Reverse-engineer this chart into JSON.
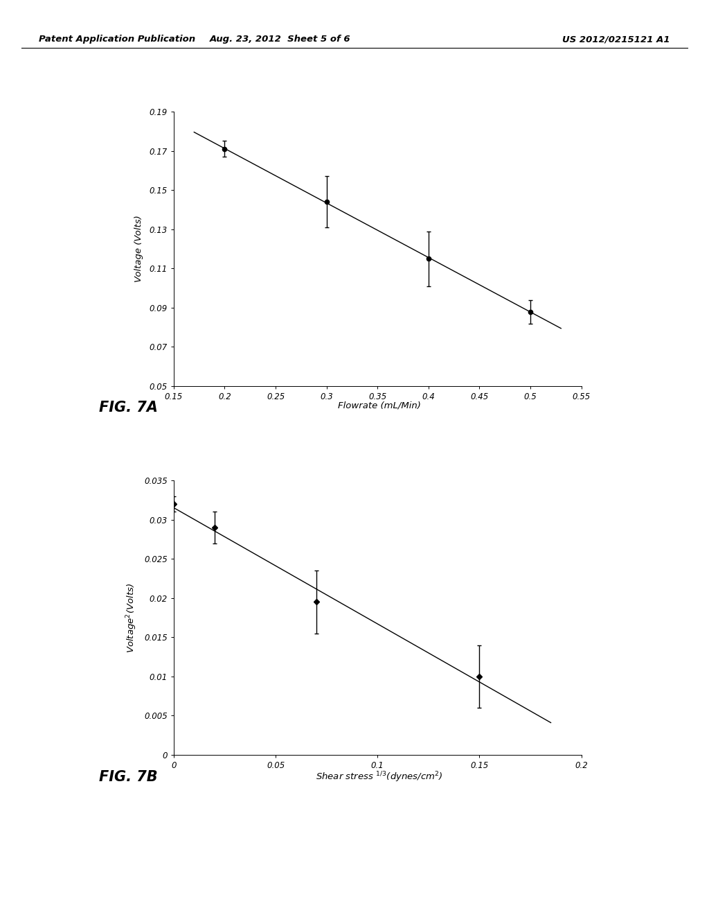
{
  "fig7a": {
    "x": [
      0.2,
      0.3,
      0.4,
      0.5
    ],
    "y": [
      0.171,
      0.144,
      0.115,
      0.088
    ],
    "yerr": [
      0.004,
      0.013,
      0.014,
      0.006
    ],
    "xlim": [
      0.15,
      0.55
    ],
    "ylim": [
      0.05,
      0.19
    ],
    "xticks": [
      0.15,
      0.2,
      0.25,
      0.3,
      0.35,
      0.4,
      0.45,
      0.5,
      0.55
    ],
    "xtick_labels": [
      "0.15",
      "0.2",
      "0.25",
      "0.3",
      "0.35",
      "0.4",
      "0.45",
      "0.5",
      "0.55"
    ],
    "yticks": [
      0.05,
      0.07,
      0.09,
      0.11,
      0.13,
      0.15,
      0.17,
      0.19
    ],
    "ytick_labels": [
      "0.05",
      "0.07",
      "0.09",
      "0.11",
      "0.13",
      "0.15",
      "0.17",
      "0.19"
    ],
    "xlabel": "Flowrate (mL/Min)",
    "ylabel": "Voltage (Volts)",
    "fig_label": "FIG. 7A",
    "line_x": [
      0.17,
      0.53
    ]
  },
  "fig7b": {
    "x": [
      0.0,
      0.02,
      0.07,
      0.15
    ],
    "y": [
      0.032,
      0.029,
      0.0195,
      0.01
    ],
    "yerr": [
      0.001,
      0.002,
      0.004,
      0.004
    ],
    "xlim": [
      0.0,
      0.2
    ],
    "ylim": [
      0.0,
      0.035
    ],
    "xticks": [
      0.0,
      0.05,
      0.1,
      0.15,
      0.2
    ],
    "xtick_labels": [
      "0",
      "0.05",
      "0.1",
      "0.15",
      "0.2"
    ],
    "yticks": [
      0.0,
      0.005,
      0.01,
      0.015,
      0.02,
      0.025,
      0.03,
      0.035
    ],
    "ytick_labels": [
      "0",
      "0.005",
      "0.01",
      "0.015",
      "0.02",
      "0.025",
      "0.03",
      "0.035"
    ],
    "xlabel": "Shear stress $^{1/3}$(dynes/cm$^{2}$)",
    "ylabel": "Voltage$^{2}$(Volts)",
    "fig_label": "FIG. 7B",
    "line_x": [
      -0.01,
      0.185
    ]
  },
  "header_left": "Patent Application Publication",
  "header_mid": "Aug. 23, 2012  Sheet 5 of 6",
  "header_right": "US 2012/0215121 A1",
  "bg_color": "#ffffff",
  "line_color": "#000000",
  "marker_color": "#000000",
  "text_color": "#000000"
}
